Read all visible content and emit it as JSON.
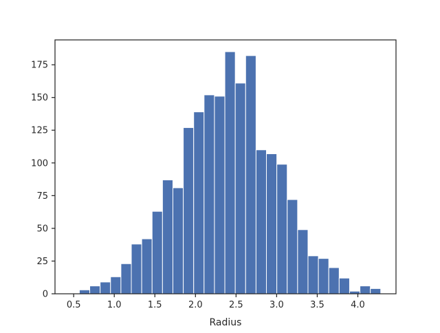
{
  "chart_data": {
    "type": "bar",
    "title": "",
    "xlabel": "Radius",
    "ylabel": "",
    "xlim": [
      0.27,
      4.47
    ],
    "ylim": [
      0,
      194
    ],
    "xticks": [
      "0.5",
      "1.0",
      "1.5",
      "2.0",
      "2.5",
      "3.0",
      "3.5",
      "4.0"
    ],
    "xtick_values": [
      0.5,
      1.0,
      1.5,
      2.0,
      2.5,
      3.0,
      3.5,
      4.0
    ],
    "yticks": [
      "0",
      "25",
      "50",
      "75",
      "100",
      "125",
      "150",
      "175"
    ],
    "ytick_values": [
      0,
      25,
      50,
      75,
      100,
      125,
      150,
      175
    ],
    "grid": false,
    "bin_edges": [
      0.57,
      0.698,
      0.826,
      0.954,
      1.082,
      1.21,
      1.338,
      1.466,
      1.594,
      1.722,
      1.85,
      1.978,
      2.106,
      2.234,
      2.362,
      2.49,
      2.618,
      2.746,
      2.874,
      3.002,
      3.13,
      3.258,
      3.386,
      3.514,
      3.642,
      3.77,
      3.898,
      4.026,
      4.154,
      4.282
    ],
    "values": [
      3,
      6,
      9,
      13,
      23,
      38,
      42,
      63,
      87,
      81,
      127,
      139,
      152,
      151,
      185,
      161,
      182,
      110,
      107,
      99,
      72,
      49,
      29,
      27,
      20,
      12,
      2,
      6,
      4
    ],
    "bar_color": "#4c72b0",
    "edge_color": "#ffffff",
    "axis_color": "#262626"
  }
}
